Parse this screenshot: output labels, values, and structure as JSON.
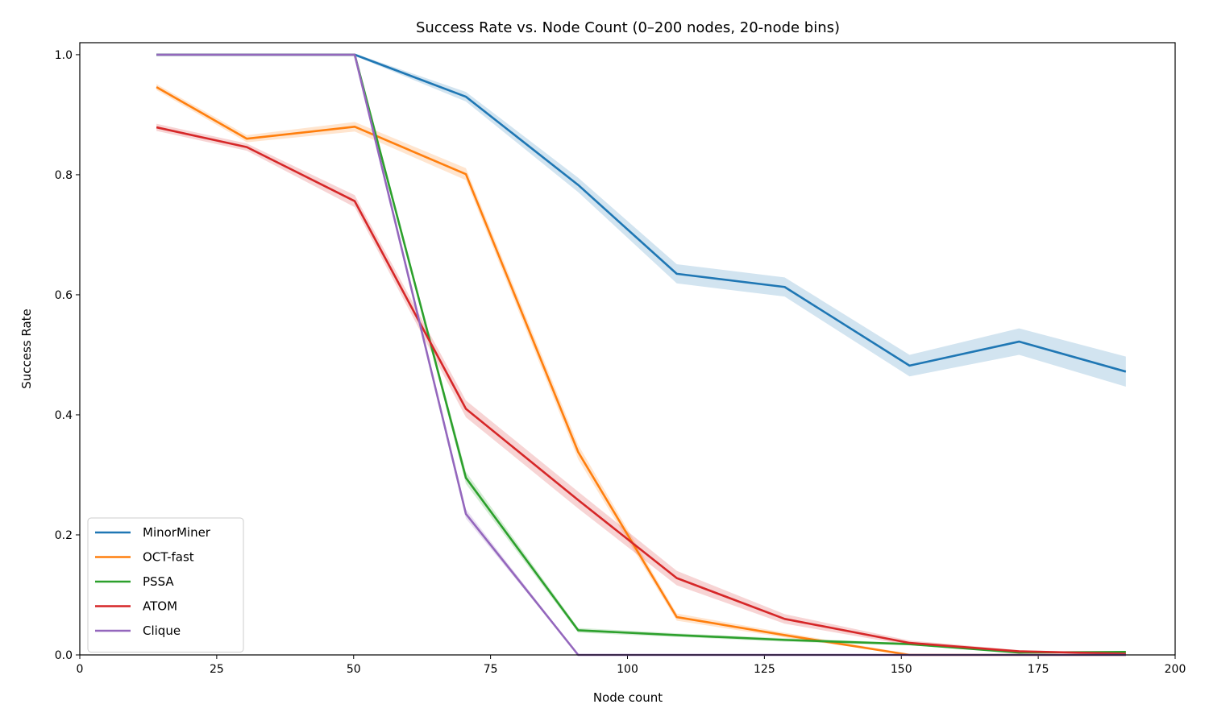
{
  "chart_data": {
    "type": "line",
    "title": "Success Rate vs. Node Count (0–200 nodes, 20-node bins)",
    "xlabel": "Node count",
    "ylabel": "Success Rate",
    "xlim": [
      0,
      200
    ],
    "ylim": [
      0,
      1.02
    ],
    "xticks": [
      0,
      25,
      50,
      75,
      100,
      125,
      150,
      175,
      200
    ],
    "yticks": [
      0.0,
      0.2,
      0.4,
      0.6,
      0.8,
      1.0
    ],
    "xtick_labels": [
      "0",
      "25",
      "50",
      "75",
      "100",
      "125",
      "150",
      "175",
      "200"
    ],
    "ytick_labels": [
      "0.0",
      "0.2",
      "0.4",
      "0.6",
      "0.8",
      "1.0"
    ],
    "grid": false,
    "legend_position": "lower-left",
    "shaded_band": true,
    "series": [
      {
        "name": "MinorMiner",
        "color": "#1f77b4",
        "x": [
          14,
          30.5,
          50.2,
          70.5,
          91,
          109,
          128.7,
          151.5,
          171.5,
          191
        ],
        "y": [
          1.0,
          1.0,
          1.0,
          0.93,
          0.783,
          0.635,
          0.613,
          0.482,
          0.522,
          0.472
        ],
        "band": [
          0.002,
          0.002,
          0.002,
          0.008,
          0.012,
          0.016,
          0.016,
          0.018,
          0.022,
          0.025
        ]
      },
      {
        "name": "OCT-fast",
        "color": "#ff7f0e",
        "x": [
          14,
          30.5,
          50.2,
          70.5,
          91,
          109,
          128.7,
          151.5,
          171.5,
          191
        ],
        "y": [
          0.946,
          0.86,
          0.88,
          0.801,
          0.338,
          0.063,
          0.033,
          0.0,
          0.0,
          0.0
        ],
        "band": [
          0.005,
          0.006,
          0.008,
          0.01,
          0.012,
          0.006,
          0.004,
          0.002,
          0.001,
          0.001
        ]
      },
      {
        "name": "PSSA",
        "color": "#2ca02c",
        "x": [
          14,
          30.5,
          50.2,
          70.5,
          91,
          109,
          128.7,
          151.5,
          171.5,
          191
        ],
        "y": [
          1.0,
          1.0,
          1.0,
          0.295,
          0.041,
          0.033,
          0.025,
          0.018,
          0.004,
          0.005
        ],
        "band": [
          0.001,
          0.001,
          0.001,
          0.01,
          0.004,
          0.003,
          0.003,
          0.002,
          0.001,
          0.001
        ]
      },
      {
        "name": "ATOM",
        "color": "#d62728",
        "x": [
          14,
          30.5,
          50.2,
          70.5,
          91,
          109,
          128.7,
          151.5,
          171.5,
          191
        ],
        "y": [
          0.879,
          0.846,
          0.756,
          0.41,
          0.258,
          0.128,
          0.06,
          0.02,
          0.006,
          0.002
        ],
        "band": [
          0.006,
          0.006,
          0.01,
          0.014,
          0.014,
          0.012,
          0.008,
          0.004,
          0.002,
          0.001
        ]
      },
      {
        "name": "Clique",
        "color": "#9467bd",
        "x": [
          14,
          30.5,
          50.2,
          70.5,
          91,
          109,
          128.7,
          151.5,
          171.5,
          191
        ],
        "y": [
          1.0,
          1.0,
          1.0,
          0.235,
          0.0,
          0.0,
          0.0,
          0.0,
          0.0,
          0.0
        ],
        "band": [
          0.001,
          0.001,
          0.001,
          0.008,
          0.001,
          0.001,
          0.001,
          0.001,
          0.001,
          0.001
        ]
      }
    ]
  }
}
